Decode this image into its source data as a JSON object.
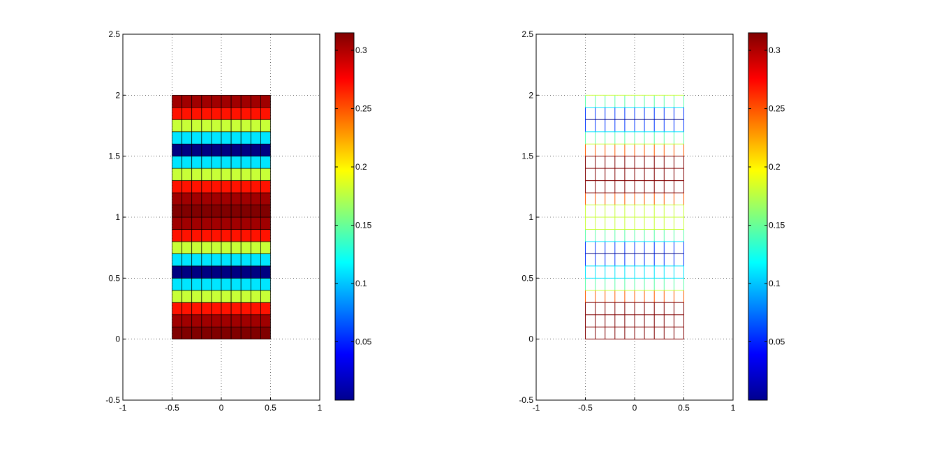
{
  "chart_data": [
    {
      "type": "heatmap",
      "title": "",
      "xlabel": "",
      "ylabel": "",
      "xlim": [
        -1,
        1
      ],
      "ylim": [
        -0.5,
        2.5
      ],
      "x_ticks": [
        "-1",
        "-0.5",
        "0",
        "0.5",
        "1"
      ],
      "y_ticks": [
        "-0.5",
        "0",
        "0.5",
        "1",
        "1.5",
        "2",
        "2.5"
      ],
      "grid": true,
      "mesh": {
        "x_range": [
          -0.5,
          0.5
        ],
        "y_range": [
          0,
          2
        ],
        "columns": 10,
        "rows": 20
      },
      "row_values": [
        0.315,
        0.305,
        0.27,
        0.18,
        0.11,
        0.0,
        0.11,
        0.18,
        0.27,
        0.305,
        0.315,
        0.305,
        0.27,
        0.18,
        0.11,
        0.0,
        0.11,
        0.18,
        0.27,
        0.305
      ],
      "style": "filled faces with black edges",
      "colorbar": {
        "colormap": "jet",
        "range": [
          0.0,
          0.315
        ],
        "ticks": [
          "0.05",
          "0.1",
          "0.15",
          "0.2",
          "0.25",
          "0.3"
        ]
      }
    },
    {
      "type": "heatmap",
      "title": "",
      "xlabel": "",
      "ylabel": "",
      "xlim": [
        -1,
        1
      ],
      "ylim": [
        -0.5,
        2.5
      ],
      "x_ticks": [
        "-1",
        "-0.5",
        "0",
        "0.5",
        "1"
      ],
      "y_ticks": [
        "-0.5",
        "0",
        "0.5",
        "1",
        "1.5",
        "2",
        "2.5"
      ],
      "grid": true,
      "mesh": {
        "x_range": [
          -0.5,
          0.5
        ],
        "y_range": [
          0,
          2
        ],
        "columns": 10,
        "rows": 20
      },
      "hline_values": [
        0.315,
        0.315,
        0.315,
        0.315,
        0.18,
        0.11,
        0.11,
        0.0,
        0.11,
        0.18,
        0.18,
        0.18,
        0.315,
        0.315,
        0.315,
        0.315,
        0.18,
        0.11,
        0.0,
        0.11,
        0.18,
        0.27
      ],
      "style": "colored mesh edges, no face fill",
      "colorbar": {
        "colormap": "jet",
        "range": [
          0.0,
          0.315
        ],
        "ticks": [
          "0.05",
          "0.1",
          "0.15",
          "0.2",
          "0.25",
          "0.3"
        ]
      }
    }
  ]
}
